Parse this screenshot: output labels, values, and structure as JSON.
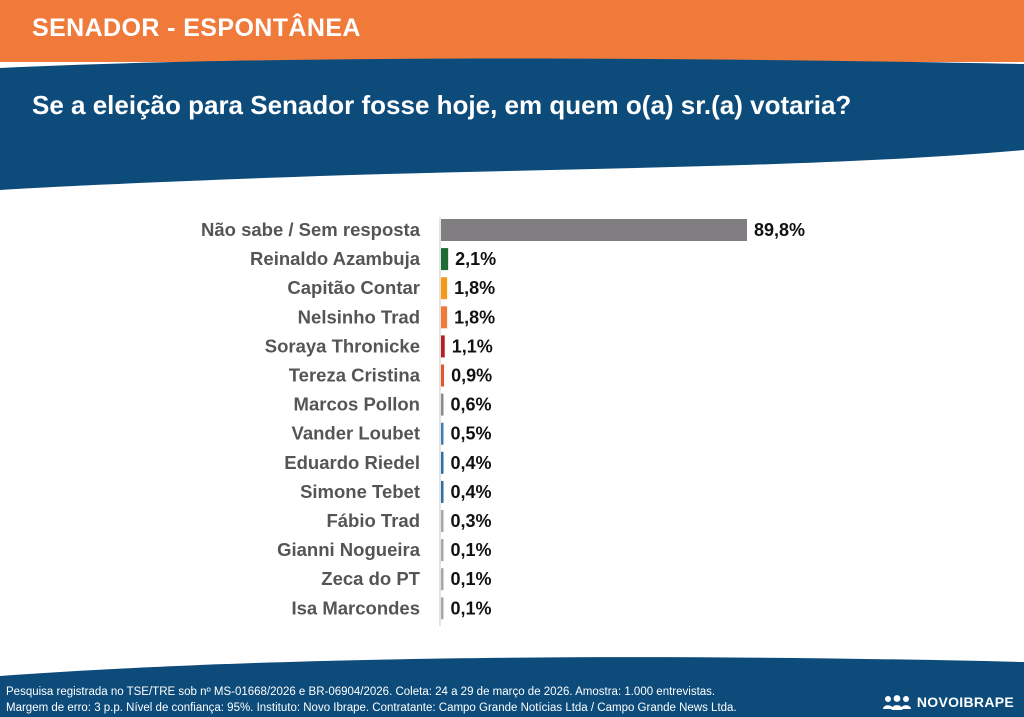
{
  "header": {
    "title": "SENADOR - ESPONTÂNEA",
    "question": "Se a eleição para Senador fosse hoje, em quem o(a) sr.(a) votaria?"
  },
  "colors": {
    "orange": "#f07a3a",
    "navy": "#0c4b7a"
  },
  "chart_data": {
    "type": "bar",
    "orientation": "horizontal",
    "categories": [
      "Não sabe / Sem resposta",
      "Reinaldo Azambuja",
      "Capitão Contar",
      "Nelsinho Trad",
      "Soraya Thronicke",
      "Tereza Cristina",
      "Marcos Pollon",
      "Vander Loubet",
      "Eduardo Riedel",
      "Simone Tebet",
      "Fábio Trad",
      "Gianni Nogueira",
      "Zeca do PT",
      "Isa Marcondes"
    ],
    "values": [
      89.8,
      2.1,
      1.8,
      1.8,
      1.1,
      0.9,
      0.6,
      0.5,
      0.4,
      0.4,
      0.3,
      0.1,
      0.1,
      0.1
    ],
    "labels": [
      "89,8%",
      "2,1%",
      "1,8%",
      "1,8%",
      "1,1%",
      "0,9%",
      "0,6%",
      "0,5%",
      "0,4%",
      "0,4%",
      "0,3%",
      "0,1%",
      "0,1%",
      "0,1%"
    ],
    "bar_colors": [
      "#807e80",
      "#1f6b35",
      "#f59a1b",
      "#f07a3a",
      "#b32025",
      "#e2572b",
      "#8a8a8a",
      "#3f7fb6",
      "#2f6fa3",
      "#2f6fa3",
      "#a7a7a7",
      "#a7a7a7",
      "#a7a7a7",
      "#a7a7a7"
    ],
    "xlim": [
      0,
      100
    ],
    "grid": false,
    "legend": "none"
  },
  "footer": {
    "line1": "Pesquisa registrada no TSE/TRE sob nº MS-01668/2026 e BR-06904/2026. Coleta: 24 a 29 de março de 2026. Amostra: 1.000 entrevistas.",
    "line2": "Margem de erro: 3 p.p. Nível de confiança: 95%. Instituto: Novo Ibrape. Contratante: Campo Grande Notícias Ltda / Campo Grande News Ltda.",
    "logo_text": "NOVOIBRAPE",
    "logo_icon": "people-group-icon"
  }
}
